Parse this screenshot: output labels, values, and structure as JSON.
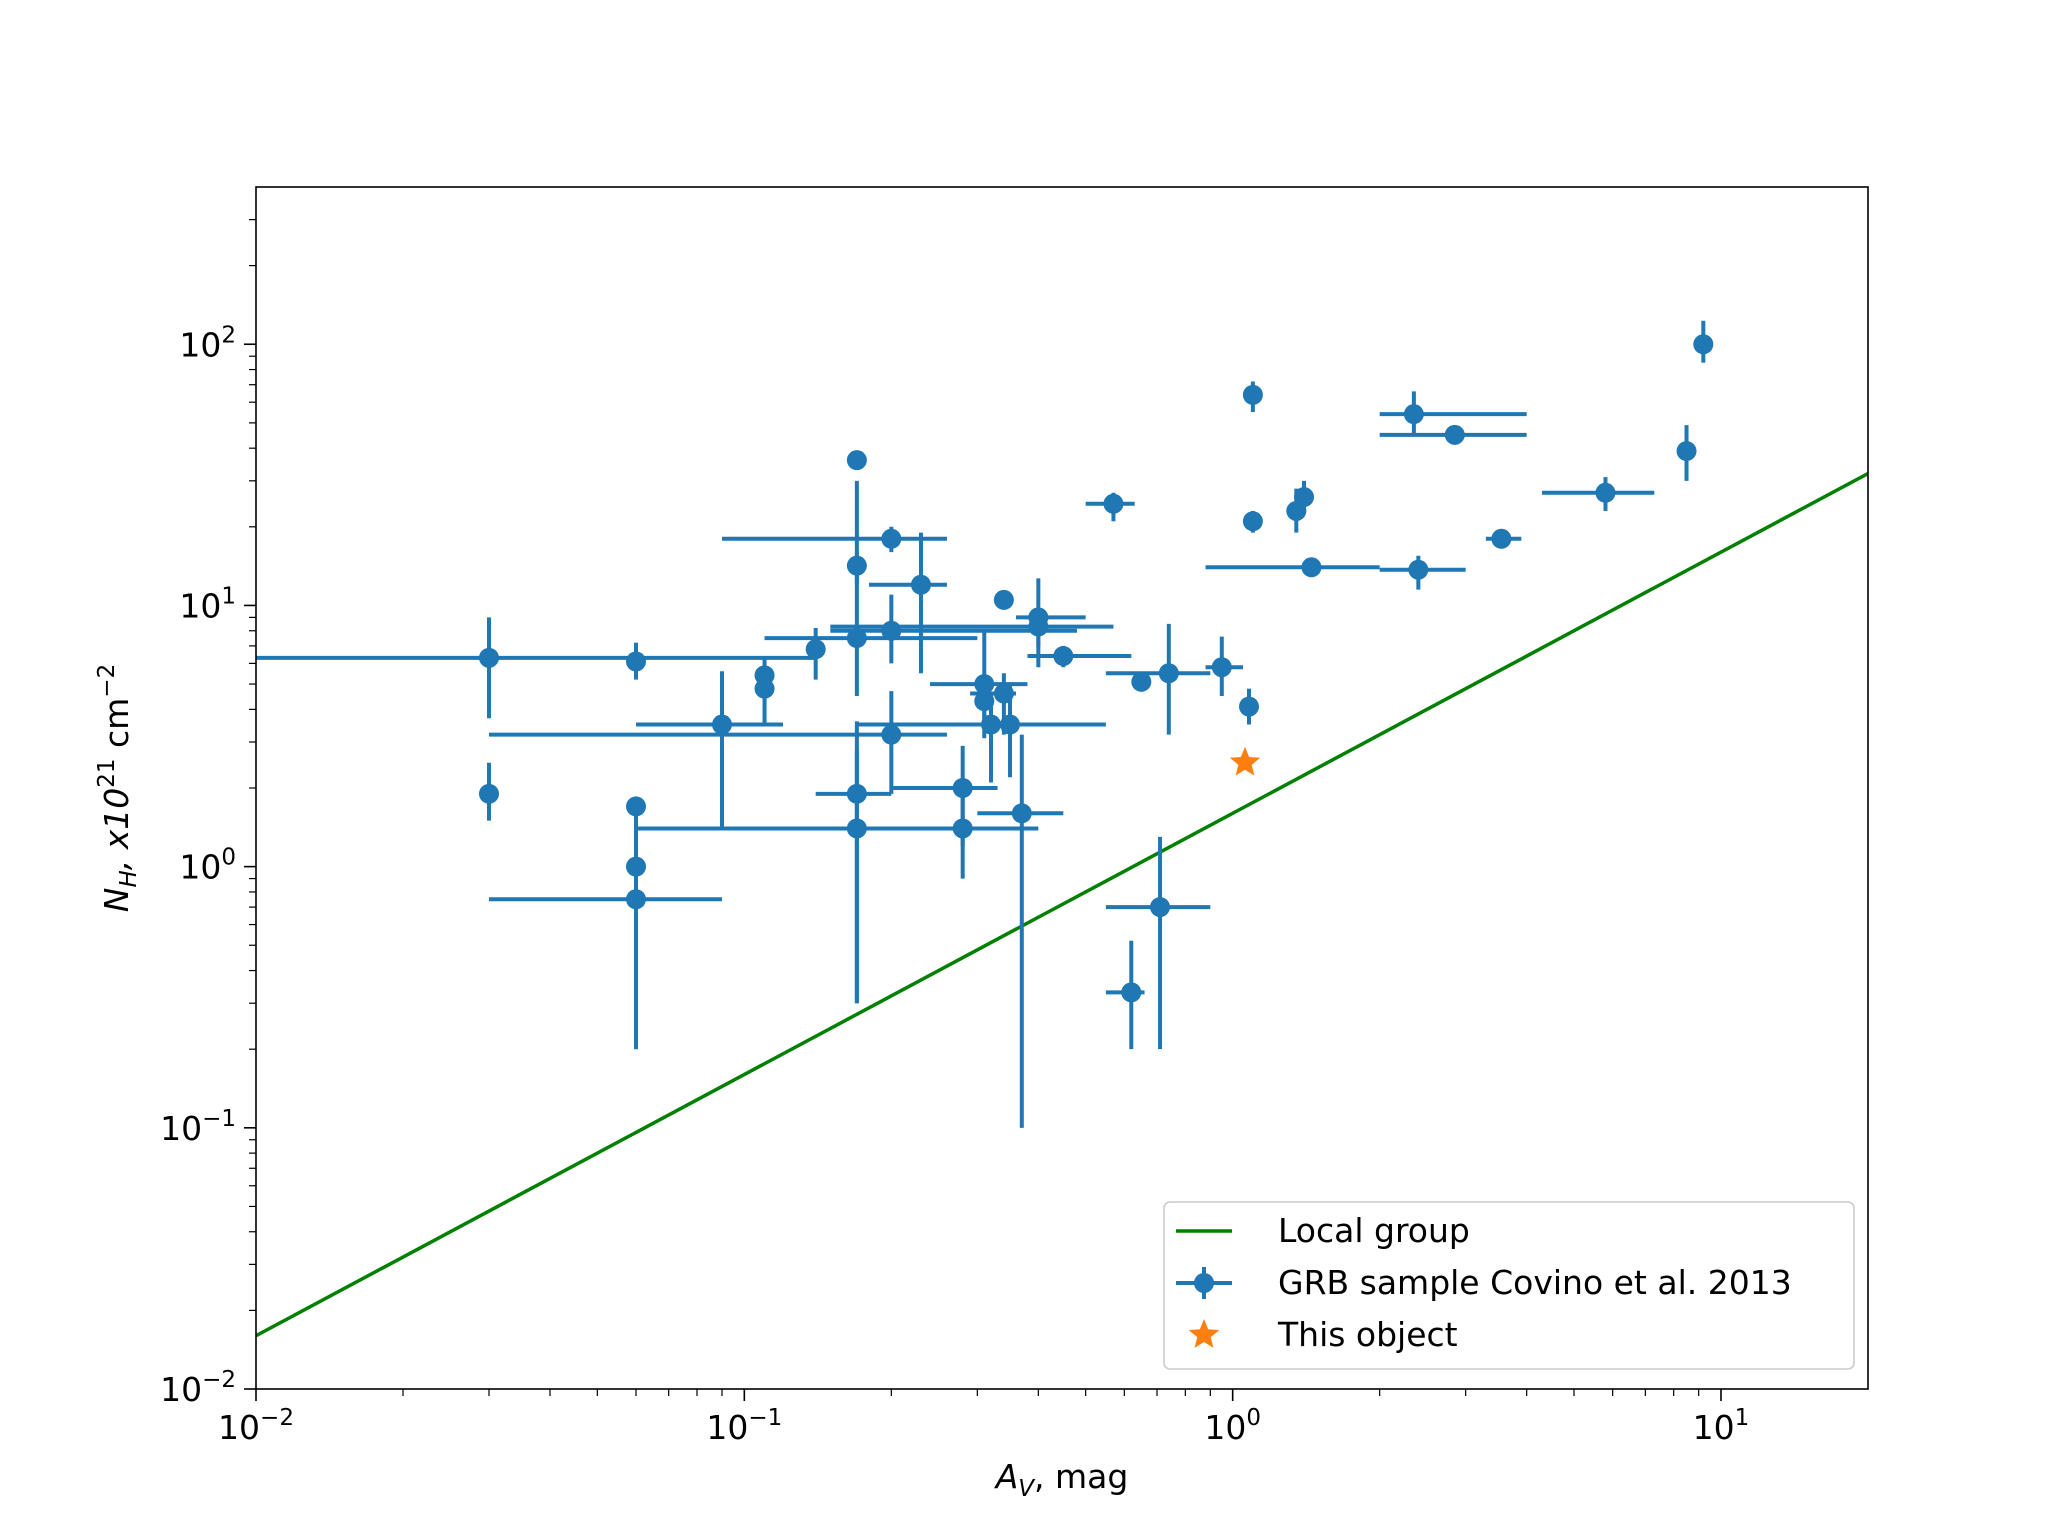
{
  "chart_data": {
    "type": "scatter",
    "title": "",
    "xlabel": "mag",
    "xlabel_symbol": "A",
    "xlabel_sub": "V",
    "ylabel_symbol": "N",
    "ylabel_sub": "H",
    "ylabel_mid": ", x10",
    "ylabel_exp": "21",
    "ylabel_unit": " cm",
    "ylabel_unit_exp": "−2",
    "xscale": "log",
    "yscale": "log",
    "xlim": [
      0.01,
      20
    ],
    "ylim": [
      0.01,
      400
    ],
    "xticks": [
      {
        "value": 0.01,
        "base": "10",
        "exp": "−2"
      },
      {
        "value": 0.1,
        "base": "10",
        "exp": "−1"
      },
      {
        "value": 1,
        "base": "10",
        "exp": "0"
      },
      {
        "value": 10,
        "base": "10",
        "exp": "1"
      }
    ],
    "yticks": [
      {
        "value": 0.01,
        "base": "10",
        "exp": "−2"
      },
      {
        "value": 0.1,
        "base": "10",
        "exp": "−1"
      },
      {
        "value": 1,
        "base": "10",
        "exp": "0"
      },
      {
        "value": 10,
        "base": "10",
        "exp": "1"
      },
      {
        "value": 100,
        "base": "10",
        "exp": "2"
      }
    ],
    "legend_position": "lower-right",
    "colors": {
      "grb": "#1f77b4",
      "local": "#008000",
      "object": "#ff7f0e"
    },
    "series": [
      {
        "name": "Local group",
        "kind": "line",
        "x": [
          0.01,
          20
        ],
        "y": [
          0.016,
          32
        ]
      },
      {
        "name": "GRB sample Covino et al. 2013",
        "kind": "errorbar",
        "points": [
          {
            "x": 0.03,
            "y": 6.3,
            "xerr": [
              0.01,
              0.14
            ],
            "yerr": [
              3.7,
              9
            ]
          },
          {
            "x": 0.03,
            "y": 1.9,
            "xerr": null,
            "yerr": [
              1.5,
              2.5
            ]
          },
          {
            "x": 0.06,
            "y": 6.1,
            "xerr": null,
            "yerr": [
              5.2,
              7.2
            ]
          },
          {
            "x": 0.06,
            "y": 1.7,
            "xerr": null,
            "yerr": [
              1.4,
              1.85
            ]
          },
          {
            "x": 0.06,
            "y": 1.0,
            "xerr": null,
            "yerr": [
              0.2,
              1.4
            ]
          },
          {
            "x": 0.06,
            "y": 0.75,
            "xerr": [
              0.03,
              0.09
            ],
            "yerr": [
              0.2,
              1.3
            ]
          },
          {
            "x": 0.09,
            "y": 3.5,
            "xerr": [
              0.06,
              0.12
            ],
            "yerr": [
              1.4,
              5.6
            ]
          },
          {
            "x": 0.11,
            "y": 5.4,
            "xerr": null,
            "yerr": [
              4.2,
              6.3
            ]
          },
          {
            "x": 0.11,
            "y": 4.8,
            "xerr": null,
            "yerr": [
              3.5,
              5.6
            ]
          },
          {
            "x": 0.14,
            "y": 6.8,
            "xerr": null,
            "yerr": [
              5.2,
              8.2
            ]
          },
          {
            "x": 0.17,
            "y": 36,
            "xerr": null,
            "yerr": [
              33,
              38
            ]
          },
          {
            "x": 0.17,
            "y": 14.2,
            "xerr": null,
            "yerr": [
              12,
              16
            ]
          },
          {
            "x": 0.17,
            "y": 7.5,
            "xerr": [
              0.11,
              0.3
            ],
            "yerr": [
              4.5,
              30
            ]
          },
          {
            "x": 0.17,
            "y": 1.9,
            "xerr": [
              0.14,
              0.2
            ],
            "yerr": [
              0.3,
              3.6
            ]
          },
          {
            "x": 0.17,
            "y": 1.4,
            "xerr": [
              0.06,
              0.4
            ],
            "yerr": [
              0.3,
              2.8
            ]
          },
          {
            "x": 0.2,
            "y": 18,
            "xerr": [
              0.09,
              0.26
            ],
            "yerr": [
              16,
              20
            ]
          },
          {
            "x": 0.2,
            "y": 8,
            "xerr": [
              0.15,
              0.48
            ],
            "yerr": [
              6,
              11
            ]
          },
          {
            "x": 0.2,
            "y": 3.2,
            "xerr": [
              0.03,
              0.26
            ],
            "yerr": [
              1.9,
              4.7
            ]
          },
          {
            "x": 0.23,
            "y": 12,
            "xerr": [
              0.18,
              0.26
            ],
            "yerr": [
              5.5,
              19
            ]
          },
          {
            "x": 0.28,
            "y": 2.0,
            "xerr": [
              0.2,
              0.33
            ],
            "yerr": [
              1.2,
              2.9
            ]
          },
          {
            "x": 0.28,
            "y": 1.4,
            "xerr": null,
            "yerr": [
              0.9,
              2
            ]
          },
          {
            "x": 0.31,
            "y": 5.0,
            "xerr": [
              0.24,
              0.38
            ],
            "yerr": [
              3.1,
              8
            ]
          },
          {
            "x": 0.31,
            "y": 4.3,
            "xerr": null,
            "yerr": [
              3.5,
              5
            ]
          },
          {
            "x": 0.32,
            "y": 3.5,
            "xerr": null,
            "yerr": [
              2.1,
              4.6
            ]
          },
          {
            "x": 0.34,
            "y": 4.6,
            "xerr": [
              0.29,
              0.36
            ],
            "yerr": [
              3.2,
              5.5
            ]
          },
          {
            "x": 0.34,
            "y": 10.5,
            "xerr": null,
            "yerr": [
              10,
              11
            ]
          },
          {
            "x": 0.35,
            "y": 3.5,
            "xerr": [
              0.17,
              0.55
            ],
            "yerr": [
              2.2,
              5
            ]
          },
          {
            "x": 0.37,
            "y": 1.6,
            "xerr": [
              0.3,
              0.45
            ],
            "yerr": [
              0.1,
              3.2
            ]
          },
          {
            "x": 0.4,
            "y": 9,
            "xerr": [
              0.36,
              0.5
            ],
            "yerr": [
              5.8,
              12.7
            ]
          },
          {
            "x": 0.4,
            "y": 8.3,
            "xerr": [
              0.15,
              0.57
            ],
            "yerr": [
              7,
              9
            ]
          },
          {
            "x": 0.45,
            "y": 6.4,
            "xerr": [
              0.38,
              0.62
            ],
            "yerr": [
              5.8,
              7
            ]
          },
          {
            "x": 0.57,
            "y": 24.5,
            "xerr": [
              0.5,
              0.63
            ],
            "yerr": [
              21,
              27
            ]
          },
          {
            "x": 0.62,
            "y": 0.33,
            "xerr": [
              0.55,
              0.66
            ],
            "yerr": [
              0.2,
              0.52
            ]
          },
          {
            "x": 0.65,
            "y": 5.1,
            "xerr": null,
            "yerr": [
              4.8,
              5.4
            ]
          },
          {
            "x": 0.71,
            "y": 0.7,
            "xerr": [
              0.55,
              0.9
            ],
            "yerr": [
              0.2,
              1.3
            ]
          },
          {
            "x": 0.74,
            "y": 5.5,
            "xerr": [
              0.55,
              0.9
            ],
            "yerr": [
              3.2,
              8.5
            ]
          },
          {
            "x": 0.95,
            "y": 5.8,
            "xerr": [
              0.88,
              1.05
            ],
            "yerr": [
              4.5,
              7.6
            ]
          },
          {
            "x": 1.08,
            "y": 4.1,
            "xerr": null,
            "yerr": [
              3.5,
              4.8
            ]
          },
          {
            "x": 1.1,
            "y": 64,
            "xerr": null,
            "yerr": [
              55,
              72
            ]
          },
          {
            "x": 1.1,
            "y": 21,
            "xerr": null,
            "yerr": [
              19,
              23
            ]
          },
          {
            "x": 1.35,
            "y": 23,
            "xerr": null,
            "yerr": [
              19,
              28
            ]
          },
          {
            "x": 1.4,
            "y": 26,
            "xerr": null,
            "yerr": [
              23,
              30
            ]
          },
          {
            "x": 1.45,
            "y": 14,
            "xerr": [
              0.88,
              2.0
            ],
            "yerr": [
              13,
              15
            ]
          },
          {
            "x": 2.35,
            "y": 54,
            "xerr": [
              2.0,
              4.0
            ],
            "yerr": [
              45,
              66
            ]
          },
          {
            "x": 2.4,
            "y": 13.7,
            "xerr": [
              2.0,
              3.0
            ],
            "yerr": [
              11.5,
              15.5
            ]
          },
          {
            "x": 2.85,
            "y": 45,
            "xerr": [
              2.0,
              4.0
            ],
            "yerr": [
              42,
              48
            ]
          },
          {
            "x": 3.55,
            "y": 18,
            "xerr": [
              3.3,
              3.9
            ],
            "yerr": [
              17,
              19
            ]
          },
          {
            "x": 5.8,
            "y": 27,
            "xerr": [
              4.3,
              7.3
            ],
            "yerr": [
              23,
              31
            ]
          },
          {
            "x": 8.5,
            "y": 39,
            "xerr": null,
            "yerr": [
              30,
              49
            ]
          },
          {
            "x": 9.2,
            "y": 100,
            "xerr": null,
            "yerr": [
              85,
              123
            ]
          }
        ]
      },
      {
        "name": "This object",
        "kind": "star",
        "x": 1.06,
        "y": 2.5
      }
    ]
  }
}
